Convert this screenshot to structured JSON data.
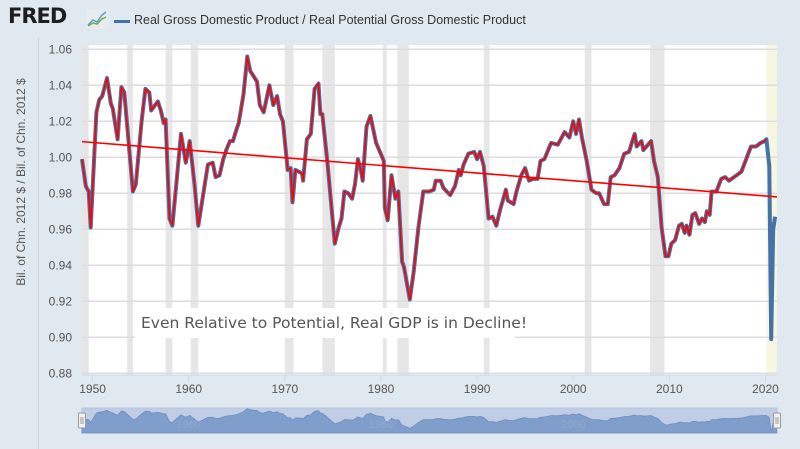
{
  "header": {
    "logo": "FRED",
    "legend_label": "Real Gross Domestic Product / Real Potential Gross Domestic Product",
    "series_color": "#4572a7"
  },
  "chart_data": {
    "type": "line",
    "title": "",
    "xlabel": "",
    "ylabel": "Bil. of Chn. 2012 $ / Bil. of Chn. 2012 $",
    "xlim": [
      1948.9,
      2021.2
    ],
    "ylim": [
      0.88,
      1.06
    ],
    "x_ticks": [
      "1950",
      "1960",
      "1970",
      "1980",
      "1990",
      "2000",
      "2010",
      "2020"
    ],
    "y_ticks": [
      "0.88",
      "0.90",
      "0.92",
      "0.94",
      "0.96",
      "0.98",
      "1.00",
      "1.02",
      "1.04",
      "1.06"
    ],
    "grid": true,
    "recessions": [
      [
        1948.9,
        1949.6
      ],
      [
        1953.6,
        1954.2
      ],
      [
        1957.6,
        1958.3
      ],
      [
        1960.2,
        1961.0
      ],
      [
        1970.0,
        1970.9
      ],
      [
        1973.9,
        1975.2
      ],
      [
        1980.2,
        1980.6
      ],
      [
        1981.7,
        1982.9
      ],
      [
        1990.7,
        1991.3
      ],
      [
        2001.2,
        2001.9
      ],
      [
        2008.0,
        2009.5
      ]
    ],
    "highlight_region": [
      2020.1,
      2021.2
    ],
    "recession_color": "#e6e6e6",
    "highlight_color": "#f7f6e0",
    "series": [
      {
        "name": "Real Gross Domestic Product / Real Potential Gross Domestic Product",
        "color": "#4572a7",
        "points": [
          [
            1948.9,
            0.999
          ],
          [
            1949.3,
            0.984
          ],
          [
            1949.6,
            0.981
          ],
          [
            1949.8,
            0.961
          ],
          [
            1950.4,
            1.025
          ],
          [
            1950.7,
            1.032
          ],
          [
            1951.0,
            1.034
          ],
          [
            1951.5,
            1.044
          ],
          [
            1951.9,
            1.03
          ],
          [
            1952.1,
            1.027
          ],
          [
            1952.6,
            1.01
          ],
          [
            1953.0,
            1.039
          ],
          [
            1953.3,
            1.036
          ],
          [
            1954.2,
            0.981
          ],
          [
            1954.5,
            0.985
          ],
          [
            1955.1,
            1.02
          ],
          [
            1955.5,
            1.038
          ],
          [
            1955.9,
            1.036
          ],
          [
            1956.1,
            1.026
          ],
          [
            1956.5,
            1.029
          ],
          [
            1956.8,
            1.031
          ],
          [
            1957.1,
            1.026
          ],
          [
            1957.4,
            1.019
          ],
          [
            1957.6,
            1.021
          ],
          [
            1958.0,
            0.966
          ],
          [
            1958.3,
            0.962
          ],
          [
            1959.2,
            1.013
          ],
          [
            1959.7,
            0.997
          ],
          [
            1960.1,
            1.009
          ],
          [
            1960.6,
            0.985
          ],
          [
            1961.0,
            0.962
          ],
          [
            1962.0,
            0.996
          ],
          [
            1962.5,
            0.997
          ],
          [
            1962.8,
            0.989
          ],
          [
            1963.2,
            0.99
          ],
          [
            1963.6,
            0.999
          ],
          [
            1963.9,
            1.004
          ],
          [
            1964.3,
            1.009
          ],
          [
            1964.6,
            1.009
          ],
          [
            1965.0,
            1.016
          ],
          [
            1965.2,
            1.019
          ],
          [
            1965.7,
            1.035
          ],
          [
            1966.1,
            1.056
          ],
          [
            1966.4,
            1.048
          ],
          [
            1967.1,
            1.042
          ],
          [
            1967.4,
            1.029
          ],
          [
            1967.8,
            1.025
          ],
          [
            1968.4,
            1.04
          ],
          [
            1968.8,
            1.029
          ],
          [
            1969.2,
            1.034
          ],
          [
            1969.5,
            1.024
          ],
          [
            1969.8,
            1.02
          ],
          [
            1970.3,
            0.993
          ],
          [
            1970.6,
            0.994
          ],
          [
            1970.8,
            0.975
          ],
          [
            1971.1,
            0.993
          ],
          [
            1971.8,
            0.991
          ],
          [
            1971.9,
            0.987
          ],
          [
            1972.3,
            1.01
          ],
          [
            1972.7,
            1.013
          ],
          [
            1973.1,
            1.038
          ],
          [
            1973.5,
            1.041
          ],
          [
            1973.7,
            1.024
          ],
          [
            1973.9,
            1.024
          ],
          [
            1974.4,
            0.999
          ],
          [
            1975.2,
            0.952
          ],
          [
            1975.6,
            0.961
          ],
          [
            1975.9,
            0.966
          ],
          [
            1976.2,
            0.981
          ],
          [
            1976.6,
            0.98
          ],
          [
            1977.0,
            0.977
          ],
          [
            1977.3,
            0.985
          ],
          [
            1977.6,
            0.999
          ],
          [
            1977.9,
            0.993
          ],
          [
            1978.1,
            0.987
          ],
          [
            1978.5,
            1.017
          ],
          [
            1978.9,
            1.023
          ],
          [
            1979.5,
            1.008
          ],
          [
            1979.9,
            1.003
          ],
          [
            1980.3,
            0.998
          ],
          [
            1980.4,
            0.972
          ],
          [
            1980.7,
            0.965
          ],
          [
            1981.1,
            0.99
          ],
          [
            1981.5,
            0.977
          ],
          [
            1981.8,
            0.981
          ],
          [
            1982.2,
            0.942
          ],
          [
            1982.4,
            0.939
          ],
          [
            1983.0,
            0.921
          ],
          [
            1983.4,
            0.936
          ],
          [
            1983.9,
            0.961
          ],
          [
            1984.4,
            0.981
          ],
          [
            1985.0,
            0.981
          ],
          [
            1985.5,
            0.982
          ],
          [
            1985.7,
            0.987
          ],
          [
            1986.2,
            0.987
          ],
          [
            1986.5,
            0.983
          ],
          [
            1987.2,
            0.979
          ],
          [
            1987.7,
            0.984
          ],
          [
            1988.1,
            0.993
          ],
          [
            1988.3,
            0.99
          ],
          [
            1988.6,
            0.996
          ],
          [
            1989.1,
            1.002
          ],
          [
            1989.7,
            1.003
          ],
          [
            1990.0,
            0.999
          ],
          [
            1990.3,
            1.003
          ],
          [
            1990.7,
            0.995
          ],
          [
            1991.2,
            0.966
          ],
          [
            1991.6,
            0.967
          ],
          [
            1992.0,
            0.962
          ],
          [
            1992.4,
            0.971
          ],
          [
            1993.0,
            0.982
          ],
          [
            1993.2,
            0.976
          ],
          [
            1993.8,
            0.974
          ],
          [
            1994.1,
            0.981
          ],
          [
            1994.6,
            0.99
          ],
          [
            1995.0,
            0.994
          ],
          [
            1995.4,
            0.987
          ],
          [
            1995.8,
            0.988
          ],
          [
            1996.3,
            0.988
          ],
          [
            1996.6,
            0.998
          ],
          [
            1997.0,
            0.999
          ],
          [
            1997.7,
            1.008
          ],
          [
            1998.4,
            1.007
          ],
          [
            1999.1,
            1.014
          ],
          [
            1999.6,
            1.011
          ],
          [
            2000.0,
            1.02
          ],
          [
            2000.3,
            1.013
          ],
          [
            2000.6,
            1.021
          ],
          [
            2000.9,
            1.011
          ],
          [
            2001.4,
            0.998
          ],
          [
            2001.9,
            0.982
          ],
          [
            2002.4,
            0.98
          ],
          [
            2002.7,
            0.98
          ],
          [
            2003.2,
            0.974
          ],
          [
            2003.6,
            0.974
          ],
          [
            2003.9,
            0.989
          ],
          [
            2004.3,
            0.99
          ],
          [
            2004.8,
            0.994
          ],
          [
            2005.3,
            1.002
          ],
          [
            2005.8,
            1.003
          ],
          [
            2006.4,
            1.013
          ],
          [
            2006.6,
            1.006
          ],
          [
            2007.1,
            1.009
          ],
          [
            2007.3,
            1.004
          ],
          [
            2008.1,
            1.009
          ],
          [
            2008.4,
            0.998
          ],
          [
            2008.8,
            0.989
          ],
          [
            2009.2,
            0.961
          ],
          [
            2009.6,
            0.945
          ],
          [
            2009.9,
            0.945
          ],
          [
            2010.2,
            0.952
          ],
          [
            2010.6,
            0.954
          ],
          [
            2011.0,
            0.962
          ],
          [
            2011.3,
            0.963
          ],
          [
            2011.6,
            0.958
          ],
          [
            2011.8,
            0.962
          ],
          [
            2012.1,
            0.957
          ],
          [
            2012.4,
            0.968
          ],
          [
            2012.7,
            0.969
          ],
          [
            2013.1,
            0.963
          ],
          [
            2013.4,
            0.966
          ],
          [
            2013.7,
            0.964
          ],
          [
            2013.9,
            0.97
          ],
          [
            2014.2,
            0.968
          ],
          [
            2014.4,
            0.981
          ],
          [
            2014.9,
            0.981
          ],
          [
            2015.4,
            0.988
          ],
          [
            2015.8,
            0.989
          ],
          [
            2016.2,
            0.987
          ],
          [
            2017.0,
            0.99
          ],
          [
            2017.5,
            0.992
          ],
          [
            2018.0,
            0.999
          ],
          [
            2018.5,
            1.006
          ],
          [
            2019.0,
            1.006
          ],
          [
            2019.5,
            1.008
          ],
          [
            2019.9,
            1.009
          ],
          [
            2020.1,
            1.01
          ],
          [
            2020.4,
            0.995
          ],
          [
            2020.6,
            0.899
          ],
          [
            2020.8,
            0.96
          ],
          [
            2021.0,
            0.967
          ]
        ]
      }
    ],
    "overlays": [
      {
        "type": "line-trace",
        "color": "#ff0000",
        "follows_series_until": 2020.1
      },
      {
        "type": "trend-line",
        "color": "#ff0000",
        "points": [
          [
            1948.9,
            1.0087
          ],
          [
            2021.2,
            0.978
          ]
        ]
      }
    ],
    "annotation": "Even Relative to Potential, Real GDP is in Decline!",
    "navigator": {
      "labels": [
        "1960",
        "1980",
        "2000"
      ],
      "fill_color": "#7f9ecb",
      "selected_range": [
        1948.9,
        2021.2
      ]
    }
  }
}
